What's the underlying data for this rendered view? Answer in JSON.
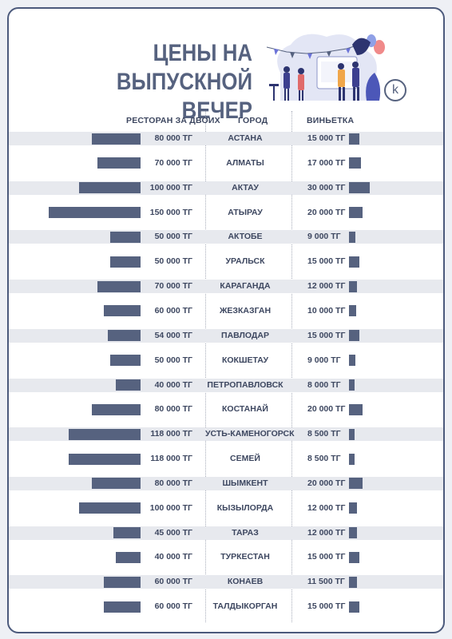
{
  "title": {
    "line1": "ЦЕНЫ НА",
    "line2": "ВЫПУСКНОЙ ВЕЧЕР"
  },
  "logo_letter": "k",
  "colors": {
    "bar": "#56627f",
    "text": "#3d4760",
    "stripe": "#e7e9ee",
    "border": "#4c5a7c"
  },
  "chart_data": {
    "type": "bar",
    "columns": {
      "restaurant": "РЕСТОРАН ЗА ДВОИХ",
      "city": "ГОРОД",
      "vignette": "ВИНЬЕТКА"
    },
    "currency": "ТГ",
    "categories": [
      "АСТАНА",
      "АЛМАТЫ",
      "АКТАУ",
      "АТЫРАУ",
      "АКТОБЕ",
      "УРАЛЬСК",
      "КАРАГАНДА",
      "ЖЕЗКАЗГАН",
      "ПАВЛОДАР",
      "КОКШЕТАУ",
      "ПЕТРОПАВЛОВСК",
      "КОСТАНАЙ",
      "УСТЬ-КАМЕНОГОРСК",
      "СЕМЕЙ",
      "ШЫМКЕНТ",
      "КЫЗЫЛОРДА",
      "ТАРАЗ",
      "ТУРКЕСТАН",
      "КОНАЕВ",
      "ТАЛДЫКОРГАН"
    ],
    "series": [
      {
        "name": "РЕСТОРАН ЗА ДВОИХ",
        "values": [
          80000,
          70000,
          100000,
          150000,
          50000,
          50000,
          70000,
          60000,
          54000,
          50000,
          40000,
          80000,
          118000,
          118000,
          80000,
          100000,
          45000,
          40000,
          60000,
          60000
        ],
        "labels": [
          "80 000 ТГ",
          "70 000 ТГ",
          "100 000 ТГ",
          "150 000 ТГ",
          "50 000 ТГ",
          "50 000 ТГ",
          "70 000 ТГ",
          "60 000 ТГ",
          "54 000 ТГ",
          "50 000 ТГ",
          "40 000 ТГ",
          "80 000 ТГ",
          "118 000 ТГ",
          "118 000 ТГ",
          "80 000 ТГ",
          "100 000 ТГ",
          "45 000 ТГ",
          "40 000 ТГ",
          "60 000 ТГ",
          "60 000 ТГ"
        ]
      },
      {
        "name": "ВИНЬЕТКА",
        "values": [
          15000,
          17000,
          30000,
          20000,
          9000,
          15000,
          12000,
          10000,
          15000,
          9000,
          8000,
          20000,
          8500,
          8500,
          20000,
          12000,
          12000,
          15000,
          11500,
          15000
        ],
        "labels": [
          "15 000 ТГ",
          "17 000 ТГ",
          "30 000 ТГ",
          "20 000 ТГ",
          "9 000 ТГ",
          "15 000 ТГ",
          "12 000 ТГ",
          "10 000 ТГ",
          "15 000 ТГ",
          "9 000 ТГ",
          "8 000 ТГ",
          "20 000 ТГ",
          "8 500 ТГ",
          "8 500 ТГ",
          "20 000 ТГ",
          "12 000 ТГ",
          "12 000 ТГ",
          "15 000 ТГ",
          "11 500 ТГ",
          "15 000 ТГ"
        ]
      }
    ]
  }
}
